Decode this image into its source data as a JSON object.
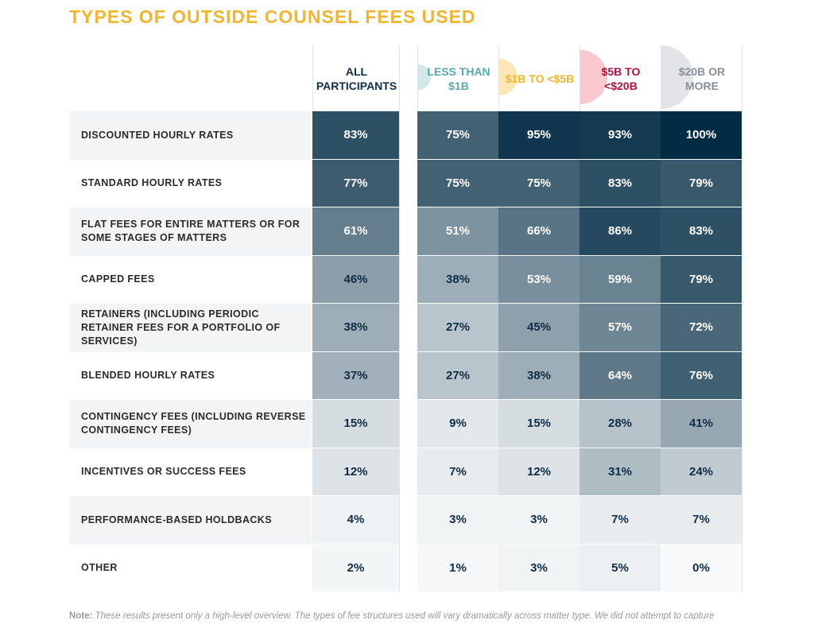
{
  "title": "TYPES OF OUTSIDE COUNSEL FEES USED",
  "chart_data": {
    "type": "heatmap",
    "columns": [
      {
        "label": "ALL PARTICIPANTS",
        "color": "#0e2f4a",
        "circle": null
      },
      {
        "label": "LESS THAN $1B",
        "color": "#5aa9a9",
        "circle": "#d3e8e8"
      },
      {
        "label": "$1B TO <$5B",
        "color": "#f0b429",
        "circle": "#fde7b5"
      },
      {
        "label": "$5B TO <$20B",
        "color": "#b3123f",
        "circle": "#f9c9cf"
      },
      {
        "label": "$20B OR MORE",
        "color": "#8a9099",
        "circle": "#e2e4e7"
      }
    ],
    "rows": [
      {
        "label": "DISCOUNTED HOURLY RATES",
        "values": [
          83,
          75,
          95,
          93,
          100
        ]
      },
      {
        "label": "STANDARD HOURLY RATES",
        "values": [
          77,
          75,
          75,
          83,
          79
        ]
      },
      {
        "label": "FLAT FEES FOR ENTIRE MATTERS OR FOR SOME STAGES OF MATTERS",
        "values": [
          61,
          51,
          66,
          86,
          83
        ]
      },
      {
        "label": "CAPPED FEES",
        "values": [
          46,
          38,
          53,
          59,
          79
        ]
      },
      {
        "label": "RETAINERS (INCLUDING PERIODIC RETAINER FEES FOR A PORTFOLIO OF SERVICES)",
        "values": [
          38,
          27,
          45,
          57,
          72
        ]
      },
      {
        "label": "BLENDED HOURLY RATES",
        "values": [
          37,
          27,
          38,
          64,
          76
        ]
      },
      {
        "label": "CONTINGENCY FEES (INCLUDING REVERSE CONTINGENCY FEES)",
        "values": [
          15,
          9,
          15,
          28,
          41
        ]
      },
      {
        "label": "INCENTIVES OR SUCCESS FEES",
        "values": [
          12,
          7,
          12,
          31,
          24
        ]
      },
      {
        "label": "PERFORMANCE-BASED HOLDBACKS",
        "values": [
          4,
          3,
          3,
          7,
          7
        ]
      },
      {
        "label": "OTHER",
        "values": [
          2,
          1,
          3,
          5,
          0
        ]
      }
    ],
    "unit": "%",
    "color_scale": {
      "low": "#f7f9fa",
      "high": "#022b44"
    }
  },
  "note": {
    "label": "Note:",
    "text": "These results present only a high-level overview. The types of fee structures used will vary dramatically across matter type. We did not attempt to capture"
  }
}
